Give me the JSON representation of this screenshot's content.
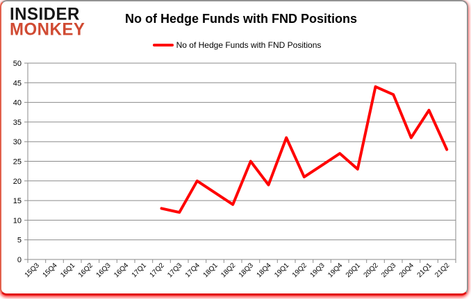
{
  "logo": {
    "line1": "INSIDER",
    "line2": "MONKEY"
  },
  "header": {
    "title": "No of Hedge Funds with FND Positions"
  },
  "legend": {
    "label": "No of Hedge Funds with FND Positions"
  },
  "colors": {
    "series_line": "#ff0000",
    "grid": "#8a8a8a",
    "axis_text": "#000000",
    "logo_red": "#d04a32",
    "logo_black": "#151515"
  },
  "chart_data": {
    "type": "line",
    "title": "No of Hedge Funds with FND Positions",
    "categories": [
      "15Q3",
      "15Q4",
      "16Q1",
      "16Q2",
      "16Q3",
      "16Q4",
      "17Q1",
      "17Q2",
      "17Q3",
      "17Q4",
      "18Q1",
      "18Q2",
      "18Q3",
      "18Q4",
      "19Q1",
      "19Q2",
      "19Q3",
      "19Q4",
      "20Q1",
      "20Q2",
      "20Q3",
      "20Q4",
      "21Q1",
      "21Q2"
    ],
    "series": [
      {
        "name": "No of Hedge Funds with FND Positions",
        "color": "#ff0000",
        "start_index": 7,
        "start_category": "17Q2",
        "values": [
          13,
          12,
          20,
          17,
          14,
          25,
          19,
          31,
          21,
          24,
          27,
          23,
          44,
          42,
          31,
          38,
          28
        ]
      }
    ],
    "ylim": [
      0,
      50
    ],
    "ytick_step": 5,
    "yticks": [
      0,
      5,
      10,
      15,
      20,
      25,
      30,
      35,
      40,
      45,
      50
    ],
    "grid": true,
    "legend_position": "top"
  }
}
